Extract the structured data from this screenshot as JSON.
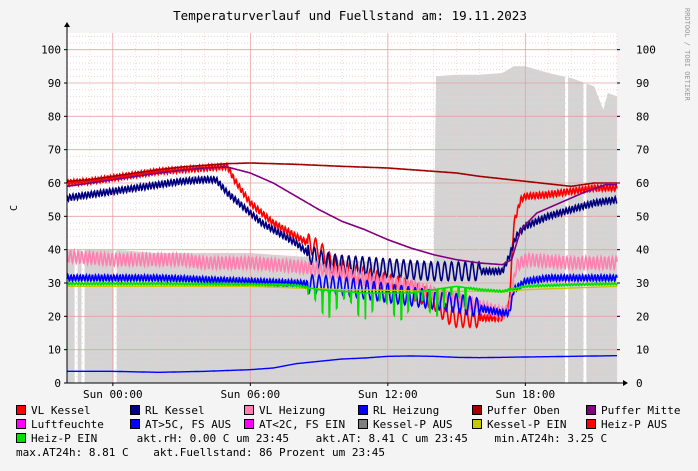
{
  "chart_data": {
    "type": "line",
    "title": "Temperaturverlauf und Fuellstand am: 19.11.2023",
    "ylabel": "C",
    "ylim": [
      0,
      105
    ],
    "yticks": [
      0,
      10,
      20,
      30,
      40,
      50,
      60,
      70,
      80,
      90,
      100
    ],
    "xlim": [
      0,
      24
    ],
    "xticks": [
      {
        "hour": 2,
        "label": "Sun 00:00"
      },
      {
        "hour": 8,
        "label": "Sun 06:00"
      },
      {
        "hour": 14,
        "label": "Sun 12:00"
      },
      {
        "hour": 20,
        "label": "Sun 18:00"
      }
    ],
    "watermark": "RRDTOOL / TOBI OETIKER",
    "grid": true,
    "series": [
      {
        "name": "VL Kessel",
        "color": "#ff0000",
        "style": "oscillating",
        "points": [
          [
            0,
            60
          ],
          [
            1,
            60.5
          ],
          [
            2,
            61.5
          ],
          [
            3,
            62.5
          ],
          [
            4,
            63.5
          ],
          [
            5,
            64
          ],
          [
            6,
            64.5
          ],
          [
            7,
            65
          ],
          [
            7.3,
            61
          ],
          [
            7.6,
            58
          ],
          [
            8,
            54
          ],
          [
            8.5,
            51
          ],
          [
            9,
            48
          ],
          [
            9.5,
            46
          ],
          [
            10,
            44
          ],
          [
            10.5,
            42
          ],
          [
            11,
            40
          ],
          [
            11.5,
            36
          ],
          [
            12,
            34
          ],
          [
            13,
            32
          ],
          [
            14,
            30
          ],
          [
            15,
            28
          ],
          [
            16,
            25
          ],
          [
            16.5,
            21
          ],
          [
            17,
            19.5
          ],
          [
            18,
            19.5
          ],
          [
            19,
            19.5
          ],
          [
            19.3,
            24
          ],
          [
            19.5,
            48
          ],
          [
            19.8,
            55
          ],
          [
            20,
            56
          ],
          [
            21,
            56.5
          ],
          [
            22,
            57.5
          ],
          [
            23,
            58.5
          ],
          [
            24,
            58.5
          ]
        ]
      },
      {
        "name": "RL Kessel",
        "color": "#000080",
        "style": "oscillating",
        "points": [
          [
            0,
            55.5
          ],
          [
            1,
            56.5
          ],
          [
            2,
            57.5
          ],
          [
            3,
            58.5
          ],
          [
            4,
            59.5
          ],
          [
            5,
            60.5
          ],
          [
            6,
            61
          ],
          [
            6.5,
            61
          ],
          [
            7,
            57
          ],
          [
            7.5,
            54
          ],
          [
            8,
            51
          ],
          [
            8.5,
            48
          ],
          [
            9,
            46
          ],
          [
            9.5,
            44
          ],
          [
            10,
            42
          ],
          [
            10.5,
            39
          ],
          [
            11,
            37
          ],
          [
            11.5,
            36
          ],
          [
            12,
            35.5
          ],
          [
            13,
            35
          ],
          [
            14,
            34.5
          ],
          [
            15,
            34
          ],
          [
            16,
            33.5
          ],
          [
            16.5,
            33.5
          ],
          [
            17,
            33.5
          ],
          [
            18,
            33.5
          ],
          [
            19,
            33.5
          ],
          [
            19.3,
            38
          ],
          [
            19.6,
            44
          ],
          [
            20,
            47
          ],
          [
            21,
            50
          ],
          [
            22,
            52
          ],
          [
            23,
            54
          ],
          [
            24,
            55
          ]
        ]
      },
      {
        "name": "VL Heizung",
        "color": "#ff80b0",
        "style": "oscillating",
        "points": [
          [
            0,
            38
          ],
          [
            1,
            37.5
          ],
          [
            2,
            37
          ],
          [
            3,
            37
          ],
          [
            4,
            37
          ],
          [
            5,
            37
          ],
          [
            6,
            36
          ],
          [
            7,
            36
          ],
          [
            8,
            36
          ],
          [
            9,
            35.5
          ],
          [
            10,
            35
          ],
          [
            11,
            34
          ],
          [
            12,
            33
          ],
          [
            13,
            31
          ],
          [
            14,
            30
          ],
          [
            15,
            29
          ],
          [
            16,
            27
          ],
          [
            17,
            25
          ],
          [
            18,
            23
          ],
          [
            19,
            21
          ],
          [
            19.3,
            22
          ],
          [
            19.6,
            35
          ],
          [
            20,
            37
          ],
          [
            21,
            36.5
          ],
          [
            22,
            36
          ],
          [
            23,
            36
          ],
          [
            24,
            36
          ]
        ]
      },
      {
        "name": "RL Heizung",
        "color": "#0000ff",
        "style": "oscillating",
        "points": [
          [
            0,
            31.5
          ],
          [
            2,
            31.5
          ],
          [
            4,
            31.5
          ],
          [
            6,
            31
          ],
          [
            8,
            30.5
          ],
          [
            10,
            30
          ],
          [
            11,
            29.5
          ],
          [
            12,
            29
          ],
          [
            13,
            28
          ],
          [
            14,
            27
          ],
          [
            15,
            26
          ],
          [
            16,
            25
          ],
          [
            17,
            24
          ],
          [
            18,
            22.5
          ],
          [
            19,
            21
          ],
          [
            19.3,
            21
          ],
          [
            19.5,
            28
          ],
          [
            20,
            30.5
          ],
          [
            21,
            31.5
          ],
          [
            22,
            31.5
          ],
          [
            23,
            31.5
          ],
          [
            24,
            31.5
          ]
        ]
      },
      {
        "name": "Puffer Oben",
        "color": "#a00000",
        "style": "line",
        "points": [
          [
            0,
            60.5
          ],
          [
            1,
            61
          ],
          [
            2,
            62
          ],
          [
            3,
            63
          ],
          [
            4,
            64
          ],
          [
            5,
            64.8
          ],
          [
            6,
            65.3
          ],
          [
            7,
            65.8
          ],
          [
            8,
            66
          ],
          [
            10,
            65.6
          ],
          [
            12,
            65
          ],
          [
            14,
            64.5
          ],
          [
            16,
            63.5
          ],
          [
            17,
            63
          ],
          [
            18,
            62
          ],
          [
            20,
            60.5
          ],
          [
            22,
            59
          ],
          [
            23,
            60
          ],
          [
            24,
            60
          ]
        ]
      },
      {
        "name": "Puffer Mitte",
        "color": "#800080",
        "style": "line",
        "points": [
          [
            0,
            59
          ],
          [
            1,
            60
          ],
          [
            2,
            61
          ],
          [
            3,
            62
          ],
          [
            4,
            63
          ],
          [
            5,
            63.8
          ],
          [
            6,
            64.5
          ],
          [
            7,
            64.8
          ],
          [
            8,
            63
          ],
          [
            9,
            60
          ],
          [
            10,
            56
          ],
          [
            11,
            52
          ],
          [
            12,
            48.5
          ],
          [
            13,
            46
          ],
          [
            14,
            43
          ],
          [
            15,
            40.5
          ],
          [
            16,
            38.5
          ],
          [
            17,
            37
          ],
          [
            18,
            36
          ],
          [
            19,
            35.5
          ],
          [
            19.4,
            37
          ],
          [
            19.8,
            46
          ],
          [
            20.5,
            51
          ],
          [
            21.5,
            54
          ],
          [
            22.5,
            57
          ],
          [
            23.5,
            59.5
          ],
          [
            24,
            59.5
          ]
        ]
      },
      {
        "name": "Luftfeuchte",
        "color": "#ff00ff",
        "style": "line",
        "points": []
      },
      {
        "name": "AT>5C, FS AUS",
        "color": "#0000ff",
        "style": "line",
        "points": [
          [
            0,
            3.5
          ],
          [
            2,
            3.5
          ],
          [
            4,
            3.2
          ],
          [
            6,
            3.5
          ],
          [
            8,
            4
          ],
          [
            9,
            4.5
          ],
          [
            10,
            5.8
          ],
          [
            11,
            6.5
          ],
          [
            12,
            7.2
          ],
          [
            13,
            7.5
          ],
          [
            14,
            8
          ],
          [
            15,
            8.1
          ],
          [
            16,
            8
          ],
          [
            17,
            7.7
          ],
          [
            18,
            7.6
          ],
          [
            20,
            7.8
          ],
          [
            22,
            8
          ],
          [
            24,
            8.2
          ]
        ]
      },
      {
        "name": "AT<2C, FS EIN",
        "color": "#ff00ff",
        "style": "line",
        "points": []
      },
      {
        "name": "Kessel-P AUS",
        "color": "#808080",
        "style": "area",
        "points": []
      },
      {
        "name": "Kessel-P EIN",
        "color": "#c8c800",
        "style": "line",
        "points": [
          [
            0,
            29
          ],
          [
            4,
            29
          ],
          [
            8,
            29
          ],
          [
            10,
            28.5
          ],
          [
            12,
            28
          ],
          [
            14,
            27.8
          ],
          [
            16,
            27.5
          ],
          [
            18,
            27.5
          ],
          [
            19,
            27.3
          ],
          [
            20,
            28
          ],
          [
            22,
            28.5
          ],
          [
            24,
            29
          ]
        ]
      },
      {
        "name": "Heiz-P AUS",
        "color": "#ff0000",
        "style": "line",
        "points": []
      },
      {
        "name": "Heiz-P EIN",
        "color": "#00e000",
        "style": "oscillating",
        "points": [
          [
            0,
            29.8
          ],
          [
            4,
            29.8
          ],
          [
            8,
            29.6
          ],
          [
            10,
            29.3
          ],
          [
            11,
            28
          ],
          [
            12,
            27.5
          ],
          [
            13,
            27
          ],
          [
            14,
            27
          ],
          [
            15,
            27
          ],
          [
            16,
            28
          ],
          [
            17,
            29
          ],
          [
            18,
            28
          ],
          [
            19,
            27.5
          ],
          [
            20,
            29
          ],
          [
            22,
            29.5
          ],
          [
            24,
            29.8
          ]
        ]
      }
    ],
    "fuellstand": {
      "name": "Fuellstand",
      "color": "#d4d4d4",
      "points": [
        [
          0,
          40
        ],
        [
          2,
          40
        ],
        [
          4,
          39
        ],
        [
          6,
          39
        ],
        [
          8,
          39
        ],
        [
          10,
          38
        ],
        [
          12,
          37
        ],
        [
          14,
          36
        ],
        [
          16,
          36
        ],
        [
          16.1,
          92
        ],
        [
          17,
          92.5
        ],
        [
          18,
          92.5
        ],
        [
          19,
          93
        ],
        [
          19.5,
          95
        ],
        [
          20,
          95
        ],
        [
          21,
          93
        ],
        [
          22,
          91.5
        ],
        [
          23,
          89
        ],
        [
          23.4,
          82
        ],
        [
          23.6,
          87
        ],
        [
          24,
          86
        ]
      ]
    },
    "stats": {
      "akt_rh": "akt.rH: 0.00 C um 23:45",
      "akt_at": "akt.AT: 8.41 C um 23:45",
      "min_at24h": "min.AT24h: 3.25 C",
      "max_at24h": "max.AT24h: 8.81 C",
      "akt_fuellstand": "akt.Fuellstand:   86 Prozent um 23:45"
    }
  }
}
